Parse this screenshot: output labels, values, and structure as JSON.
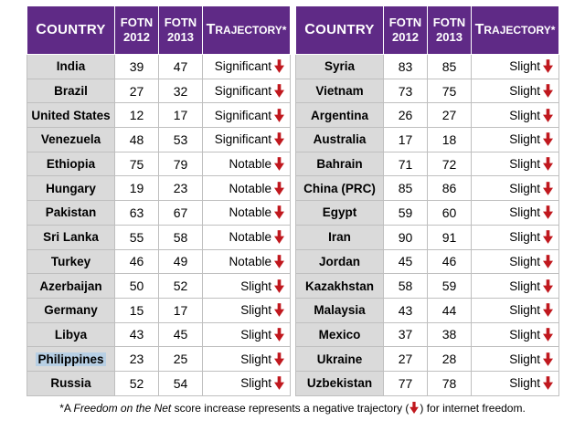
{
  "headers": {
    "country": "Country",
    "fotn2012": [
      "FOTN",
      "2012"
    ],
    "fotn2013": [
      "FOTN",
      "2013"
    ],
    "trajectory": "Trajectory*"
  },
  "colors": {
    "header_bg": "#5f2a86",
    "arrow": "#c0181e",
    "country_bg": "#dadada",
    "highlight": "#b7cfe4"
  },
  "left_rows": [
    {
      "country": "India",
      "y2012": "39",
      "y2013": "47",
      "trajectory": "Significant"
    },
    {
      "country": "Brazil",
      "y2012": "27",
      "y2013": "32",
      "trajectory": "Significant"
    },
    {
      "country": "United States",
      "y2012": "12",
      "y2013": "17",
      "trajectory": "Significant"
    },
    {
      "country": "Venezuela",
      "y2012": "48",
      "y2013": "53",
      "trajectory": "Significant"
    },
    {
      "country": "Ethiopia",
      "y2012": "75",
      "y2013": "79",
      "trajectory": "Notable"
    },
    {
      "country": "Hungary",
      "y2012": "19",
      "y2013": "23",
      "trajectory": "Notable"
    },
    {
      "country": "Pakistan",
      "y2012": "63",
      "y2013": "67",
      "trajectory": "Notable"
    },
    {
      "country": "Sri Lanka",
      "y2012": "55",
      "y2013": "58",
      "trajectory": "Notable"
    },
    {
      "country": "Turkey",
      "y2012": "46",
      "y2013": "49",
      "trajectory": "Notable"
    },
    {
      "country": "Azerbaijan",
      "y2012": "50",
      "y2013": "52",
      "trajectory": "Slight"
    },
    {
      "country": "Germany",
      "y2012": "15",
      "y2013": "17",
      "trajectory": "Slight"
    },
    {
      "country": "Libya",
      "y2012": "43",
      "y2013": "45",
      "trajectory": "Slight"
    },
    {
      "country": "Philippines",
      "y2012": "23",
      "y2013": "25",
      "trajectory": "Slight",
      "selected": true
    },
    {
      "country": "Russia",
      "y2012": "52",
      "y2013": "54",
      "trajectory": "Slight"
    }
  ],
  "right_rows": [
    {
      "country": "Syria",
      "y2012": "83",
      "y2013": "85",
      "trajectory": "Slight"
    },
    {
      "country": "Vietnam",
      "y2012": "73",
      "y2013": "75",
      "trajectory": "Slight"
    },
    {
      "country": "Argentina",
      "y2012": "26",
      "y2013": "27",
      "trajectory": "Slight"
    },
    {
      "country": "Australia",
      "y2012": "17",
      "y2013": "18",
      "trajectory": "Slight"
    },
    {
      "country": "Bahrain",
      "y2012": "71",
      "y2013": "72",
      "trajectory": "Slight"
    },
    {
      "country": "China (PRC)",
      "y2012": "85",
      "y2013": "86",
      "trajectory": "Slight"
    },
    {
      "country": "Egypt",
      "y2012": "59",
      "y2013": "60",
      "trajectory": "Slight"
    },
    {
      "country": "Iran",
      "y2012": "90",
      "y2013": "91",
      "trajectory": "Slight"
    },
    {
      "country": "Jordan",
      "y2012": "45",
      "y2013": "46",
      "trajectory": "Slight"
    },
    {
      "country": "Kazakhstan",
      "y2012": "58",
      "y2013": "59",
      "trajectory": "Slight"
    },
    {
      "country": "Malaysia",
      "y2012": "43",
      "y2013": "44",
      "trajectory": "Slight"
    },
    {
      "country": "Mexico",
      "y2012": "37",
      "y2013": "38",
      "trajectory": "Slight"
    },
    {
      "country": "Ukraine",
      "y2012": "27",
      "y2013": "28",
      "trajectory": "Slight"
    },
    {
      "country": "Uzbekistan",
      "y2012": "77",
      "y2013": "78",
      "trajectory": "Slight"
    }
  ],
  "footnote": {
    "prefix": "*A ",
    "emphasis": "Freedom on the Net",
    "middle": " score increase represents a negative trajectory (",
    "suffix": ") for internet freedom.",
    "arrow_icon": "down-arrow-icon"
  }
}
